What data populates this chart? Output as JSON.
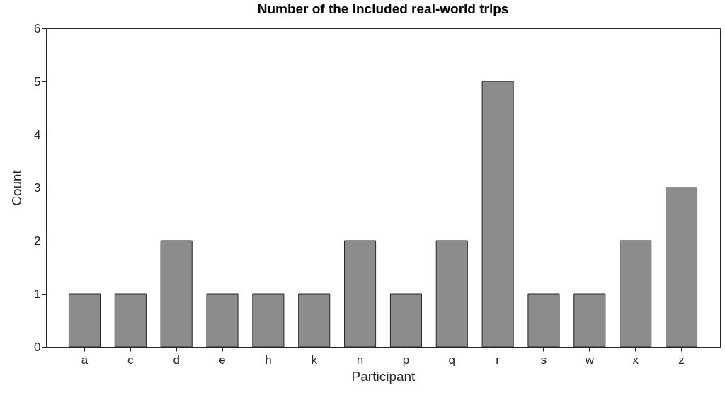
{
  "chart_data": {
    "type": "bar",
    "title": "Number of the included real-world trips",
    "xlabel": "Participant",
    "ylabel": "Count",
    "categories": [
      "a",
      "c",
      "d",
      "e",
      "h",
      "k",
      "n",
      "p",
      "q",
      "r",
      "s",
      "w",
      "x",
      "z"
    ],
    "values": [
      1,
      1,
      2,
      1,
      1,
      1,
      2,
      1,
      2,
      5,
      1,
      1,
      2,
      3
    ],
    "color": "#8c8c8c",
    "ylim": [
      0,
      6
    ],
    "yticks": [
      0,
      1,
      2,
      3,
      4,
      5,
      6
    ],
    "grid": false
  }
}
